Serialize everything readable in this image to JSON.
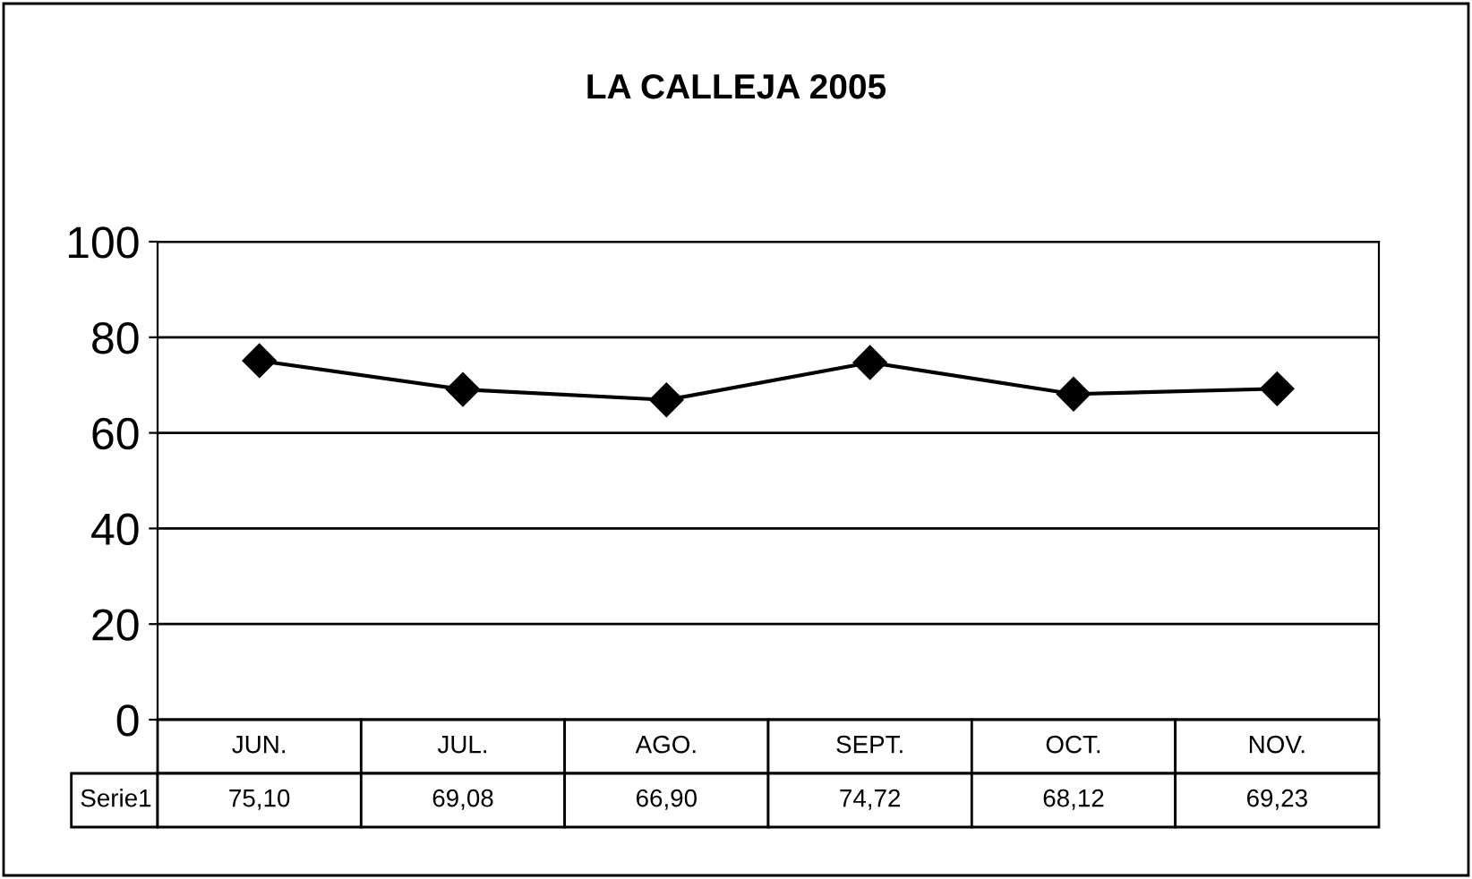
{
  "chart_data": {
    "type": "line",
    "title": "LA CALLEJA 2005",
    "categories": [
      "JUN.",
      "JUL.",
      "AGO.",
      "SEPT.",
      "OCT.",
      "NOV."
    ],
    "series": [
      {
        "name": "Serie1",
        "color": "#000000",
        "values": [
          75.1,
          69.08,
          66.9,
          74.72,
          68.12,
          69.23
        ],
        "value_labels": [
          "75,10",
          "69,08",
          "66,90",
          "74,72",
          "68,12",
          "69,23"
        ]
      }
    ],
    "ylim": [
      0,
      100
    ],
    "yticks": [
      0,
      20,
      40,
      60,
      80,
      100
    ],
    "grid": "y",
    "marker": "diamond",
    "line_style": "solid"
  }
}
